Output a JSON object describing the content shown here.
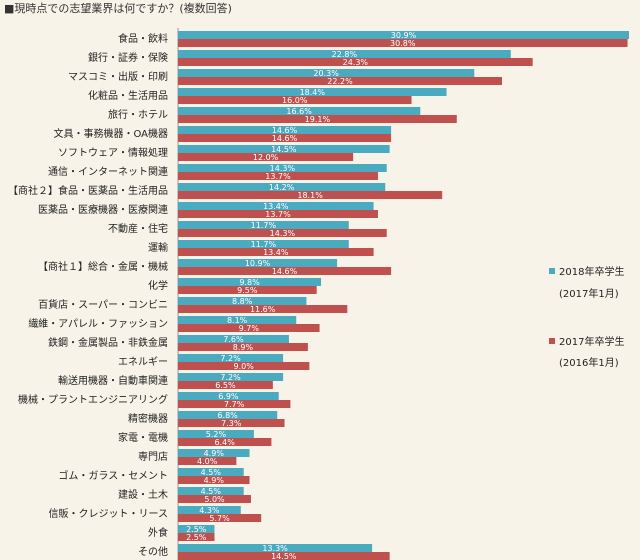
{
  "title": "■現時点での志望業界は何ですか？(複数回答)",
  "chart_data": {
    "type": "bar",
    "orientation": "horizontal",
    "title": "■現時点での志望業界は何ですか？(複数回答)",
    "xlim": [
      0,
      31
    ],
    "categories": [
      "食品・飲料",
      "銀行・証券・保険",
      "マスコミ・出版・印刷",
      "化粧品・生活用品",
      "旅行・ホテル",
      "文具・事務機器・OA機器",
      "ソフトウェア・情報処理",
      "通信・インターネット関連",
      "【商社２】食品・医薬品・生活用品",
      "医薬品・医療機器・医療関連",
      "不動産・住宅",
      "運輸",
      "【商社１】総合・金属・機械",
      "化学",
      "百貨店・スーパー・コンビニ",
      "繊維・アパレル・ファッション",
      "鉄鋼・金属製品・非鉄金属",
      "エネルギー",
      "輸送用機器・自動車関連",
      "機械・プラントエンジニアリング",
      "精密機器",
      "家電・電機",
      "専門店",
      "ゴム・ガラス・セメント",
      "建設・土木",
      "信販・クレジット・リース",
      "外食",
      "その他"
    ],
    "series": [
      {
        "name": "2018年卒学生",
        "note": "(2017年1月)",
        "color": "#4aaac0",
        "values": [
          30.9,
          22.8,
          20.3,
          18.4,
          16.6,
          14.6,
          14.5,
          14.3,
          14.2,
          13.4,
          11.7,
          11.7,
          10.9,
          9.8,
          8.8,
          8.1,
          7.6,
          7.2,
          7.2,
          6.9,
          6.8,
          5.2,
          4.9,
          4.5,
          4.5,
          4.3,
          2.5,
          13.3
        ],
        "labels": [
          "30.9%",
          "22.8%",
          "20.3%",
          "18.4%",
          "16.6%",
          "14.6%",
          "14.5%",
          "14.3%",
          "14.2%",
          "13.4%",
          "11.7%",
          "11.7%",
          "10.9%",
          "9.8%",
          "8.8%",
          "8.1%",
          "7.6%",
          "7.2%",
          "7.2%",
          "6.9%",
          "6.8%",
          "5.2%",
          "4.9%",
          "4.5%",
          "4.5%",
          "4.3%",
          "2.5%",
          "13.3%"
        ]
      },
      {
        "name": "2017年卒学生",
        "note": "(2016年1月)",
        "color": "#c0504d",
        "values": [
          30.8,
          24.3,
          22.2,
          16.0,
          19.1,
          14.6,
          12.0,
          13.7,
          18.1,
          13.7,
          14.3,
          13.4,
          14.6,
          9.5,
          11.6,
          9.7,
          8.9,
          9.0,
          6.5,
          7.7,
          7.3,
          6.4,
          4.0,
          4.9,
          5.0,
          5.7,
          2.5,
          14.5
        ],
        "labels": [
          "30.8%",
          "24.3%",
          "22.2%",
          "16.0%",
          "19.1%",
          "14.6%",
          "12.0%",
          "13.7%",
          "18.1%",
          "13.7%",
          "14.3%",
          "13.4%",
          "14.6%",
          "9.5%",
          "11.6%",
          "9.7%",
          "8.9%",
          "9.0%",
          "6.5%",
          "7.7%",
          "7.3%",
          "6.4%",
          "4.0%",
          "4.9%",
          "5.0%",
          "5.7%",
          "2.5%",
          "14.5%"
        ]
      }
    ],
    "legend": "right"
  }
}
